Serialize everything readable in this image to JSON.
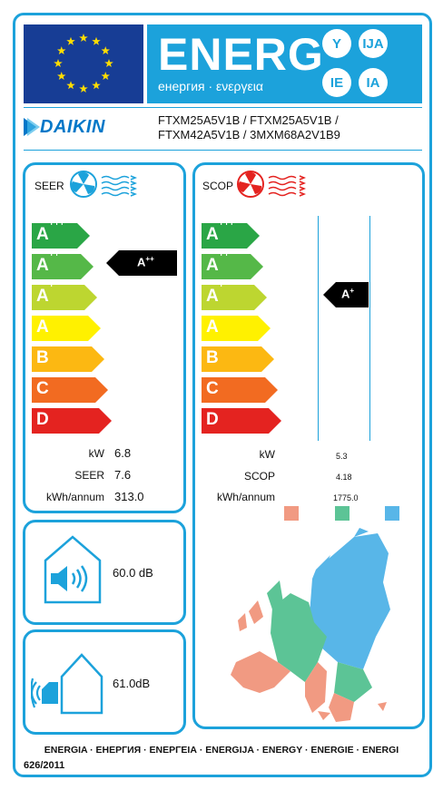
{
  "header": {
    "energy_title": "ENERG",
    "energy_subtitle": "енергия · ενεργεια",
    "language_badges": [
      "Y",
      "IJA",
      "IE",
      "IA"
    ]
  },
  "brand": {
    "name": "DAIKIN",
    "models_line1": "FTXM25A5V1B / FTXM25A5V1B /",
    "models_line2": "FTXM42A5V1B / 3MXM68A2V1B9"
  },
  "scale": [
    {
      "letter": "A",
      "plus": "+++",
      "color": "#2aa646"
    },
    {
      "letter": "A",
      "plus": "++",
      "color": "#55b848"
    },
    {
      "letter": "A",
      "plus": "+",
      "color": "#bdd630"
    },
    {
      "letter": "A",
      "plus": "",
      "color": "#fff100"
    },
    {
      "letter": "B",
      "plus": "",
      "color": "#fcb812"
    },
    {
      "letter": "C",
      "plus": "",
      "color": "#f26b21"
    },
    {
      "letter": "D",
      "plus": "",
      "color": "#e42320"
    }
  ],
  "cooling": {
    "title": "SEER",
    "class_letter": "A",
    "class_plus": "++",
    "labels": [
      "kW",
      "SEER",
      "kWh/annum"
    ],
    "values": [
      "6.8",
      "7.6",
      "313.0"
    ]
  },
  "heating": {
    "title": "SCOP",
    "class_letter": "A",
    "class_plus": "+",
    "labels": [
      "kW",
      "SCOP",
      "kWh/annum"
    ],
    "values": [
      "5.3",
      "4.18",
      "1775.0"
    ],
    "zone_colors": [
      "#f19a82",
      "#5cc496",
      "#58b6e8"
    ]
  },
  "noise": {
    "indoor": "60.0 dB",
    "outdoor": "61.0dB"
  },
  "footer": {
    "languages": "ENERGIA · ЕНЕРГИЯ · ΕΝΕΡΓΕΙΑ · ENERGIJA · ENERGY · ENERGIE · ENERGI",
    "regulation": "626/2011"
  }
}
